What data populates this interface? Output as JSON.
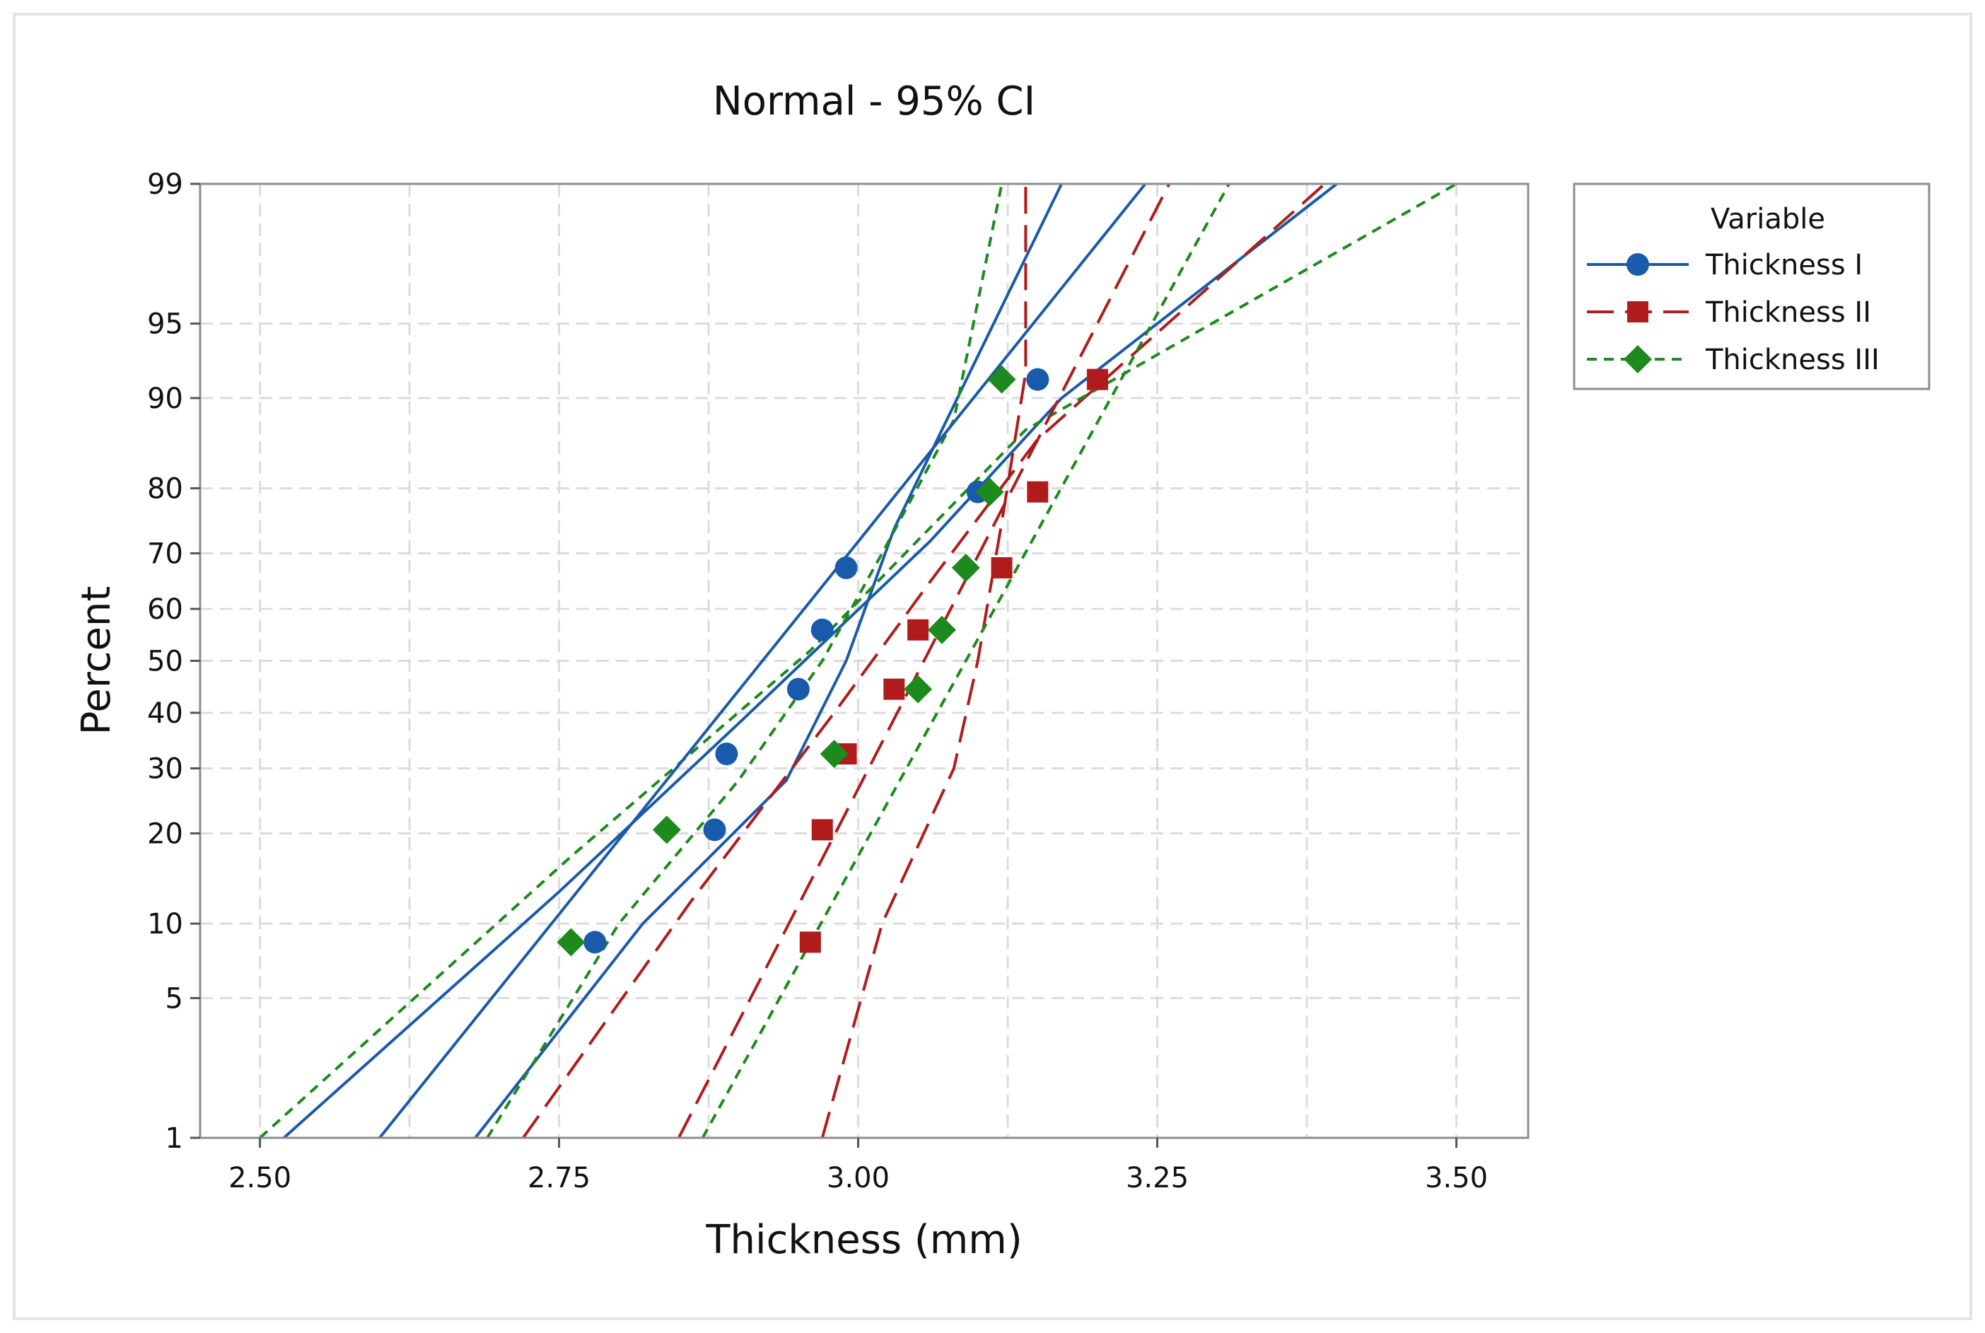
{
  "chart_data": {
    "type": "scatter",
    "title": "Normal - 95% CI",
    "xlabel": "Thickness (mm)",
    "ylabel": "Percent",
    "xlim": [
      2.45,
      3.56
    ],
    "xticks": [
      2.5,
      2.75,
      3.0,
      3.25,
      3.5
    ],
    "xtick_labels": [
      "2.50",
      "2.75",
      "3.00",
      "3.25",
      "3.50"
    ],
    "yticks": [
      1,
      5,
      10,
      20,
      30,
      40,
      50,
      60,
      70,
      80,
      90,
      95,
      99
    ],
    "ytick_labels": [
      "1",
      "5",
      "10",
      "20",
      "30",
      "40",
      "50",
      "60",
      "70",
      "80",
      "90",
      "95",
      "99"
    ],
    "ylim": [
      1,
      99
    ],
    "yscale": "normal-probability",
    "grid": true,
    "legend": {
      "title": "Variable",
      "position": "right"
    },
    "series": [
      {
        "name": "Thickness I",
        "color": "#1a5aaa",
        "marker": "circle",
        "line": "solid",
        "points": [
          [
            2.78,
            8.5
          ],
          [
            2.88,
            20.5
          ],
          [
            2.89,
            32.5
          ],
          [
            2.95,
            44.5
          ],
          [
            2.97,
            56.0
          ],
          [
            2.99,
            67.5
          ],
          [
            3.1,
            79.5
          ],
          [
            3.15,
            91.5
          ]
        ],
        "fit": [
          [
            2.6,
            1
          ],
          [
            3.24,
            99
          ]
        ],
        "ci_lower": [
          [
            2.52,
            1
          ],
          [
            2.75,
            13
          ],
          [
            2.9,
            38
          ],
          [
            3.06,
            72
          ],
          [
            3.17,
            90
          ],
          [
            3.4,
            99
          ]
        ],
        "ci_upper": [
          [
            2.68,
            1
          ],
          [
            2.82,
            10
          ],
          [
            2.94,
            28
          ],
          [
            2.99,
            50
          ],
          [
            3.03,
            74
          ],
          [
            3.07,
            87
          ],
          [
            3.17,
            99
          ]
        ]
      },
      {
        "name": "Thickness II",
        "color": "#b01c1c",
        "marker": "square",
        "line": "dash",
        "points": [
          [
            2.96,
            8.5
          ],
          [
            2.97,
            20.5
          ],
          [
            2.99,
            32.5
          ],
          [
            3.03,
            44.5
          ],
          [
            3.05,
            56.0
          ],
          [
            3.12,
            67.5
          ],
          [
            3.15,
            79.5
          ],
          [
            3.2,
            91.5
          ]
        ],
        "fit": [
          [
            2.85,
            1
          ],
          [
            3.26,
            99
          ]
        ],
        "ci_lower": [
          [
            2.72,
            1
          ],
          [
            2.86,
            12
          ],
          [
            2.98,
            40
          ],
          [
            3.06,
            65
          ],
          [
            3.15,
            86
          ],
          [
            3.39,
            99
          ]
        ],
        "ci_upper": [
          [
            2.97,
            1
          ],
          [
            3.02,
            10
          ],
          [
            3.08,
            30
          ],
          [
            3.1,
            50
          ],
          [
            3.12,
            75
          ],
          [
            3.14,
            92
          ],
          [
            3.14,
            99
          ]
        ]
      },
      {
        "name": "Thickness III",
        "color": "#1c8a1c",
        "marker": "diamond",
        "line": "dot",
        "points": [
          [
            2.76,
            8.5
          ],
          [
            2.84,
            20.5
          ],
          [
            2.98,
            32.5
          ],
          [
            3.05,
            44.5
          ],
          [
            3.07,
            56.0
          ],
          [
            3.09,
            67.5
          ],
          [
            3.11,
            79.5
          ],
          [
            3.12,
            91.5
          ]
        ],
        "fit": [
          [
            2.87,
            1
          ],
          [
            3.31,
            99
          ]
        ],
        "ci_lower": [
          [
            2.5,
            1
          ],
          [
            2.76,
            17
          ],
          [
            2.96,
            52
          ],
          [
            3.14,
            87
          ],
          [
            3.5,
            99
          ]
        ],
        "ci_upper": [
          [
            2.69,
            1
          ],
          [
            2.8,
            10
          ],
          [
            2.9,
            28
          ],
          [
            2.97,
            50
          ],
          [
            3.02,
            70
          ],
          [
            3.08,
            88
          ],
          [
            3.12,
            99
          ]
        ]
      }
    ]
  }
}
